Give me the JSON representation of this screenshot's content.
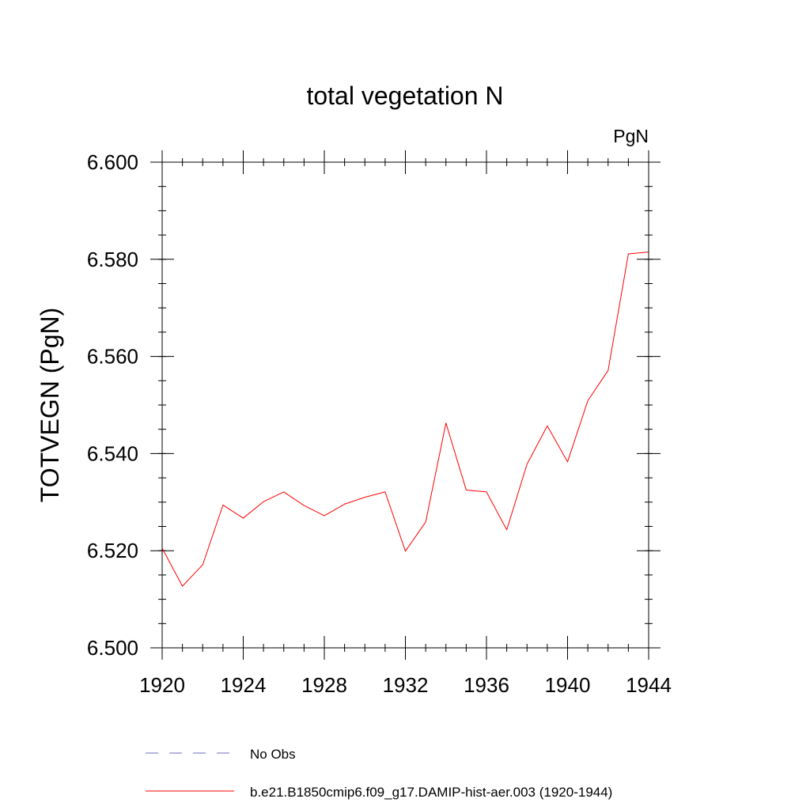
{
  "chart_data": {
    "type": "line",
    "title": "total vegetation N",
    "units_label": "PgN",
    "ylabel": "TOTVEGN  (PgN)",
    "xlabel": "",
    "xlim": [
      1920,
      1944
    ],
    "ylim": [
      6.5,
      6.6
    ],
    "x_ticks": [
      1920,
      1924,
      1928,
      1932,
      1936,
      1940,
      1944
    ],
    "x_tick_labels": [
      "1920",
      "1924",
      "1928",
      "1932",
      "1936",
      "1940",
      "1944"
    ],
    "y_ticks": [
      6.5,
      6.52,
      6.54,
      6.56,
      6.58,
      6.6
    ],
    "y_tick_labels": [
      "6.500",
      "6.520",
      "6.540",
      "6.560",
      "6.580",
      "6.600"
    ],
    "grid": false,
    "legend_position": "bottom",
    "series": [
      {
        "name": "b.e21.B1850cmip6.f09_g17.DAMIP-hist-aer.003 (1920-1944)",
        "color": "#ff0000",
        "line_style": "solid",
        "x": [
          1920,
          1921,
          1922,
          1923,
          1924,
          1925,
          1926,
          1927,
          1928,
          1929,
          1930,
          1931,
          1932,
          1933,
          1934,
          1935,
          1936,
          1937,
          1938,
          1939,
          1940,
          1941,
          1942,
          1943,
          1944
        ],
        "values": [
          6.5205,
          6.5127,
          6.5171,
          6.5294,
          6.5267,
          6.5301,
          6.5321,
          6.5293,
          6.5272,
          6.5296,
          6.531,
          6.5321,
          6.5199,
          6.5259,
          6.5463,
          6.5325,
          6.5321,
          6.5243,
          6.5378,
          6.5457,
          6.5383,
          6.5509,
          6.5571,
          6.5811,
          6.5815
        ]
      }
    ],
    "legend": [
      {
        "label": "No Obs",
        "color": "#6b6bc0",
        "line_style": "dashed"
      },
      {
        "label": "b.e21.B1850cmip6.f09_g17.DAMIP-hist-aer.003 (1920-1944)",
        "color": "#ff0000",
        "line_style": "solid"
      }
    ]
  }
}
